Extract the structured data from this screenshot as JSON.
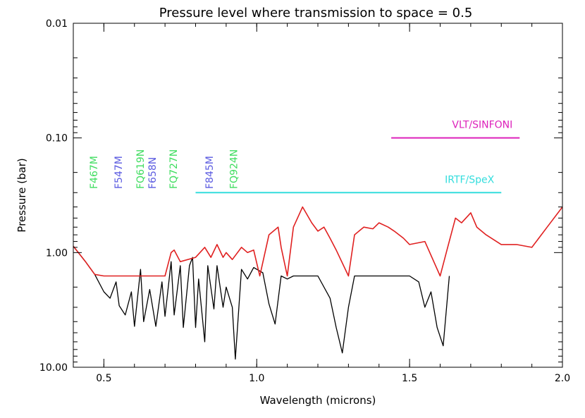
{
  "chart_data": {
    "type": "line",
    "title": "Pressure level where transmission to space = 0.5",
    "xlabel": "Wavelength (microns)",
    "ylabel": "Pressure (bar)",
    "xlim": [
      0.4,
      2.0
    ],
    "ylim": [
      0.01,
      10.0
    ],
    "yscale": "log",
    "grid": false,
    "x_ticks": [
      0.5,
      1.0,
      1.5,
      2.0
    ],
    "x_tick_labels": [
      "0.5",
      "1.0",
      "1.5",
      "2.0"
    ],
    "y_ticks": [
      0.01,
      0.1,
      1.0,
      10.0
    ],
    "y_tick_labels": [
      "0.01",
      "0.10",
      "1.00",
      "10.00"
    ],
    "series": [
      {
        "color": "#000000",
        "x": [
          0.4,
          0.44,
          0.47,
          0.5,
          0.52,
          0.54,
          0.55,
          0.57,
          0.59,
          0.6,
          0.62,
          0.63,
          0.65,
          0.67,
          0.69,
          0.7,
          0.72,
          0.73,
          0.75,
          0.76,
          0.78,
          0.79,
          0.8,
          0.81,
          0.83,
          0.84,
          0.86,
          0.87,
          0.89,
          0.9,
          0.92,
          0.93,
          0.95,
          0.97,
          0.99,
          1.02,
          1.04,
          1.06,
          1.08,
          1.1,
          1.12,
          1.15,
          1.2,
          1.24,
          1.26,
          1.28,
          1.3,
          1.32,
          1.35,
          1.4,
          1.45,
          1.5,
          1.53,
          1.55,
          1.57,
          1.59,
          1.61,
          1.63
        ],
        "values": [
          0.88,
          1.2,
          1.55,
          2.2,
          2.5,
          1.8,
          2.9,
          3.5,
          2.2,
          4.4,
          1.4,
          4.0,
          2.1,
          4.4,
          1.8,
          3.6,
          1.2,
          3.5,
          1.3,
          4.5,
          1.3,
          1.1,
          4.5,
          1.7,
          6.0,
          1.3,
          3.1,
          1.3,
          3.0,
          2.0,
          3.0,
          8.5,
          1.4,
          1.7,
          1.35,
          1.5,
          2.8,
          4.2,
          1.6,
          1.7,
          1.6,
          1.6,
          1.6,
          2.5,
          4.5,
          7.5,
          3.0,
          1.6,
          1.6,
          1.6,
          1.6,
          1.6,
          1.8,
          3.0,
          2.2,
          4.5,
          6.5,
          1.6
        ]
      },
      {
        "color": "#e02020",
        "x": [
          0.4,
          0.44,
          0.47,
          0.5,
          0.6,
          0.7,
          0.72,
          0.73,
          0.75,
          0.8,
          0.83,
          0.85,
          0.87,
          0.89,
          0.9,
          0.92,
          0.95,
          0.97,
          0.99,
          1.01,
          1.04,
          1.07,
          1.08,
          1.1,
          1.12,
          1.15,
          1.18,
          1.2,
          1.22,
          1.24,
          1.26,
          1.3,
          1.32,
          1.35,
          1.38,
          1.4,
          1.43,
          1.45,
          1.48,
          1.5,
          1.55,
          1.6,
          1.62,
          1.65,
          1.67,
          1.7,
          1.72,
          1.75,
          1.8,
          1.85,
          1.9,
          1.95,
          2.0
        ],
        "values": [
          0.88,
          1.2,
          1.55,
          1.6,
          1.6,
          1.6,
          1.0,
          0.95,
          1.2,
          1.1,
          0.9,
          1.1,
          0.85,
          1.1,
          1.0,
          1.15,
          0.9,
          1.0,
          0.95,
          1.6,
          0.7,
          0.6,
          0.9,
          1.6,
          0.6,
          0.4,
          0.55,
          0.65,
          0.6,
          0.75,
          0.95,
          1.6,
          0.7,
          0.6,
          0.62,
          0.55,
          0.6,
          0.65,
          0.75,
          0.85,
          0.8,
          1.6,
          1.0,
          0.5,
          0.55,
          0.45,
          0.6,
          0.7,
          0.85,
          0.85,
          0.9,
          0.6,
          0.4
        ]
      }
    ],
    "filters": [
      {
        "label": "F467M",
        "color": "#40dd60",
        "center": 0.467
      },
      {
        "label": "F547M",
        "color": "#5a5ae0",
        "center": 0.547
      },
      {
        "label": "FQ619N",
        "color": "#40dd60",
        "center": 0.619
      },
      {
        "label": "F658N",
        "color": "#5a5ae0",
        "center": 0.658
      },
      {
        "label": "FQ727N",
        "color": "#40dd60",
        "center": 0.727
      },
      {
        "label": "F845M",
        "color": "#5a5ae0",
        "center": 0.845
      },
      {
        "label": "FQ924N",
        "color": "#40dd60",
        "center": 0.924
      }
    ],
    "instruments": [
      {
        "label": "VLT/SINFONI",
        "color": "#dd22bb",
        "x0": 1.44,
        "x1": 1.86,
        "pressure": 0.1
      },
      {
        "label": "IRTF/SpeX",
        "color": "#33dddd",
        "x0": 0.8,
        "x1": 1.8,
        "pressure": 0.3
      }
    ]
  }
}
